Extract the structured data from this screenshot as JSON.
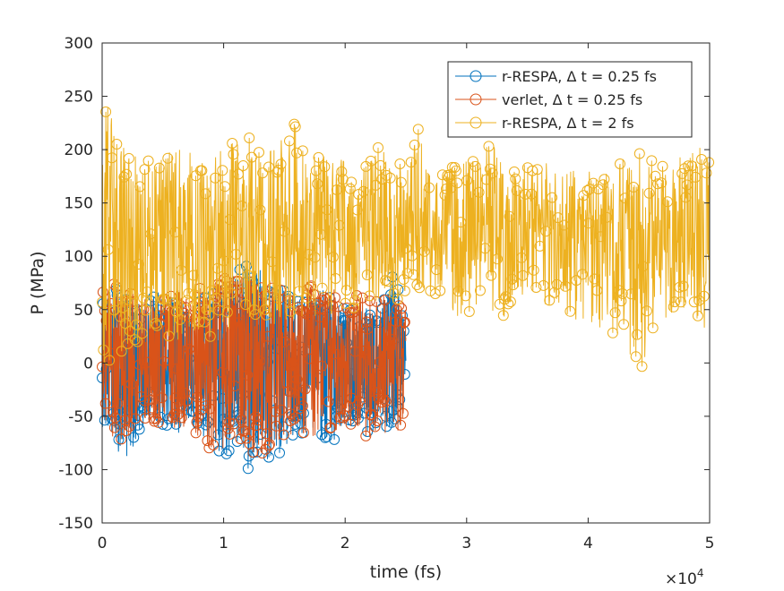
{
  "chart_data": {
    "type": "line",
    "xlabel": "time (fs)",
    "ylabel": "P (MPa)",
    "x_exponent_label": "×10",
    "x_exponent_power": "4",
    "xlim": [
      0,
      50000
    ],
    "ylim": [
      -150,
      300
    ],
    "x_ticks": [
      0,
      10000,
      20000,
      30000,
      40000,
      50000
    ],
    "x_tick_labels": [
      "0",
      "1",
      "2",
      "3",
      "4",
      "5"
    ],
    "y_ticks": [
      -150,
      -100,
      -50,
      0,
      50,
      100,
      150,
      200,
      250,
      300
    ],
    "y_tick_labels": [
      "-150",
      "-100",
      "-50",
      "0",
      "50",
      "100",
      "150",
      "200",
      "250",
      "300"
    ],
    "grid": false,
    "legend_position": "top-right",
    "marker": "circle",
    "series": [
      {
        "name": "r-RESPA, Δ t = 0.25 fs",
        "color": "#0072BD",
        "x_range": [
          0,
          25000
        ],
        "mean": 10,
        "x": [
          0,
          1000,
          2000,
          3000,
          4000,
          5000,
          6000,
          7000,
          8000,
          9000,
          10000,
          11000,
          12000,
          13000,
          14000,
          15000,
          16000,
          17000,
          18000,
          19000,
          20000,
          21000,
          22000,
          23000,
          24000,
          25000
        ],
        "max": [
          60,
          75,
          60,
          55,
          65,
          70,
          60,
          55,
          65,
          70,
          75,
          85,
          105,
          90,
          80,
          70,
          65,
          60,
          70,
          60,
          50,
          55,
          50,
          60,
          95,
          30
        ],
        "min": [
          -60,
          -80,
          -90,
          -70,
          -55,
          -60,
          -70,
          -55,
          -70,
          -80,
          -90,
          -85,
          -103,
          -90,
          -95,
          -80,
          -75,
          -70,
          -70,
          -80,
          -55,
          -60,
          -70,
          -60,
          -60,
          -10
        ]
      },
      {
        "name": "verlet, Δ t = 0.25 fs",
        "color": "#D95319",
        "x_range": [
          0,
          25000
        ],
        "mean": 8,
        "x": [
          0,
          1000,
          2000,
          3000,
          4000,
          5000,
          6000,
          7000,
          8000,
          9000,
          10000,
          11000,
          12000,
          13000,
          14000,
          15000,
          16000,
          17000,
          18000,
          19000,
          20000,
          21000,
          22000,
          23000,
          24000,
          25000
        ],
        "max": [
          80,
          75,
          65,
          70,
          65,
          60,
          70,
          65,
          70,
          75,
          80,
          80,
          85,
          75,
          80,
          70,
          65,
          75,
          70,
          70,
          60,
          65,
          60,
          65,
          60,
          55
        ],
        "min": [
          -55,
          -75,
          -70,
          -60,
          -55,
          -60,
          -65,
          -60,
          -70,
          -85,
          -80,
          -70,
          -80,
          -90,
          -75,
          -70,
          -65,
          -70,
          -75,
          -65,
          -60,
          -65,
          -70,
          -65,
          -70,
          -80
        ]
      },
      {
        "name": "r-RESPA, Δ t = 2 fs",
        "color": "#EDB120",
        "x_range": [
          0,
          50000
        ],
        "mean": 120,
        "x": [
          0,
          1000,
          2000,
          3000,
          4000,
          5000,
          6000,
          7000,
          8000,
          9000,
          10000,
          11000,
          12000,
          13000,
          14000,
          15000,
          16000,
          17000,
          18000,
          19000,
          20000,
          21000,
          22000,
          23000,
          24000,
          25000,
          26000,
          27000,
          28000,
          29000,
          30000,
          31000,
          32000,
          33000,
          34000,
          35000,
          36000,
          37000,
          38000,
          39000,
          40000,
          41000,
          42000,
          43000,
          44000,
          45000,
          46000,
          47000,
          48000,
          49000,
          50000
        ],
        "max": [
          255,
          225,
          205,
          195,
          200,
          195,
          200,
          205,
          185,
          195,
          200,
          210,
          215,
          200,
          205,
          220,
          225,
          200,
          195,
          190,
          195,
          185,
          190,
          210,
          195,
          180,
          225,
          175,
          180,
          185,
          190,
          190,
          215,
          185,
          190,
          185,
          185,
          190,
          180,
          185,
          180,
          185,
          190,
          195,
          200,
          195,
          185,
          190,
          195,
          205,
          210
        ],
        "min": [
          -10,
          0,
          10,
          20,
          25,
          35,
          15,
          30,
          25,
          20,
          25,
          40,
          40,
          45,
          30,
          40,
          40,
          45,
          40,
          45,
          55,
          50,
          55,
          60,
          55,
          55,
          70,
          65,
          60,
          45,
          40,
          55,
          50,
          40,
          55,
          55,
          50,
          40,
          45,
          40,
          30,
          30,
          25,
          25,
          -15,
          10,
          35,
          45,
          40,
          30,
          20
        ]
      }
    ]
  }
}
